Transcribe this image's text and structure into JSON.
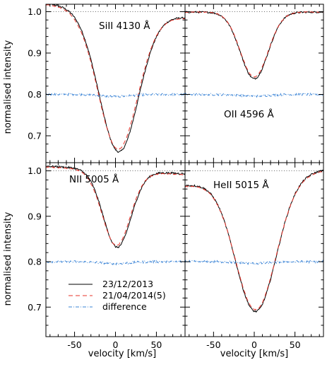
{
  "colors": {
    "observed_2013": "#000000",
    "observed_2014": "#e8332a",
    "difference": "#3b84d6",
    "reference": "#555555"
  },
  "shared_axes": {
    "xlabel": "velocity [km/s]",
    "ylabel": "normalised intensity",
    "xlim": [
      -85,
      85
    ],
    "ylim": [
      0.635,
      1.018
    ],
    "x_ticks": [
      "-50",
      "0",
      "50"
    ],
    "y_ticks": [
      "0.7",
      "0.8",
      "0.9",
      "1.0"
    ],
    "reference_line_y": 1.0
  },
  "legend": {
    "placement": "lower-left of bottom-left panel",
    "entries": [
      {
        "label": "23/12/2013",
        "style": "solid",
        "color": "#000000"
      },
      {
        "label": "21/04/2014(5)",
        "style": "dashed",
        "color": "#e8332a"
      },
      {
        "label": "difference",
        "style": "dash-dot",
        "color": "#3b84d6"
      }
    ]
  },
  "chart_data": [
    {
      "type": "line",
      "panel": "top-left",
      "line_label": "SiII 4130 Å",
      "x_range": [
        -85,
        85
      ],
      "series": [
        {
          "name": "23/12/2013",
          "profile": {
            "continuum": 1.003,
            "minimum": 0.662,
            "center": 4,
            "sigma": 24,
            "slope": -0.0002
          }
        },
        {
          "name": "21/04/2014(5)",
          "profile": {
            "continuum": 1.0,
            "minimum": 0.668,
            "center": 3,
            "sigma": 24,
            "slope": -0.0002
          }
        },
        {
          "name": "difference",
          "baseline": 0.8,
          "dip": 0.005,
          "noise": 0.0025
        }
      ]
    },
    {
      "type": "line",
      "panel": "top-right",
      "line_label": "OII 4596 Å",
      "x_range": [
        -85,
        85
      ],
      "series": [
        {
          "name": "23/12/2013",
          "profile": {
            "continuum": 0.999,
            "minimum": 0.838,
            "center": 0,
            "sigma": 17,
            "slope": 0.0
          }
        },
        {
          "name": "21/04/2014(5)",
          "profile": {
            "continuum": 0.999,
            "minimum": 0.842,
            "center": 0,
            "sigma": 17,
            "slope": 0.0
          }
        },
        {
          "name": "difference",
          "baseline": 0.8,
          "dip": 0.004,
          "noise": 0.0025
        }
      ]
    },
    {
      "type": "line",
      "panel": "bottom-left",
      "line_label": "NII 5005 Å",
      "x_range": [
        -85,
        85
      ],
      "series": [
        {
          "name": "23/12/2013",
          "profile": {
            "continuum": 1.002,
            "minimum": 0.832,
            "center": 2,
            "sigma": 17,
            "slope": -0.0001
          }
        },
        {
          "name": "21/04/2014(5)",
          "profile": {
            "continuum": 1.0,
            "minimum": 0.836,
            "center": 1,
            "sigma": 17,
            "slope": -0.0001
          }
        },
        {
          "name": "difference",
          "baseline": 0.8,
          "dip": 0.004,
          "noise": 0.0025
        }
      ]
    },
    {
      "type": "line",
      "panel": "bottom-right",
      "line_label": "HeII 5015 Å",
      "x_range": [
        -85,
        85
      ],
      "series": [
        {
          "name": "23/12/2013",
          "profile": {
            "continuum": 0.985,
            "minimum": 0.69,
            "center": 2,
            "sigma": 25,
            "slope": 0.0002
          }
        },
        {
          "name": "21/04/2014(5)",
          "profile": {
            "continuum": 0.983,
            "minimum": 0.694,
            "center": 2,
            "sigma": 25,
            "slope": 0.0002
          }
        },
        {
          "name": "difference",
          "baseline": 0.8,
          "dip": 0.004,
          "noise": 0.0025
        }
      ]
    }
  ]
}
